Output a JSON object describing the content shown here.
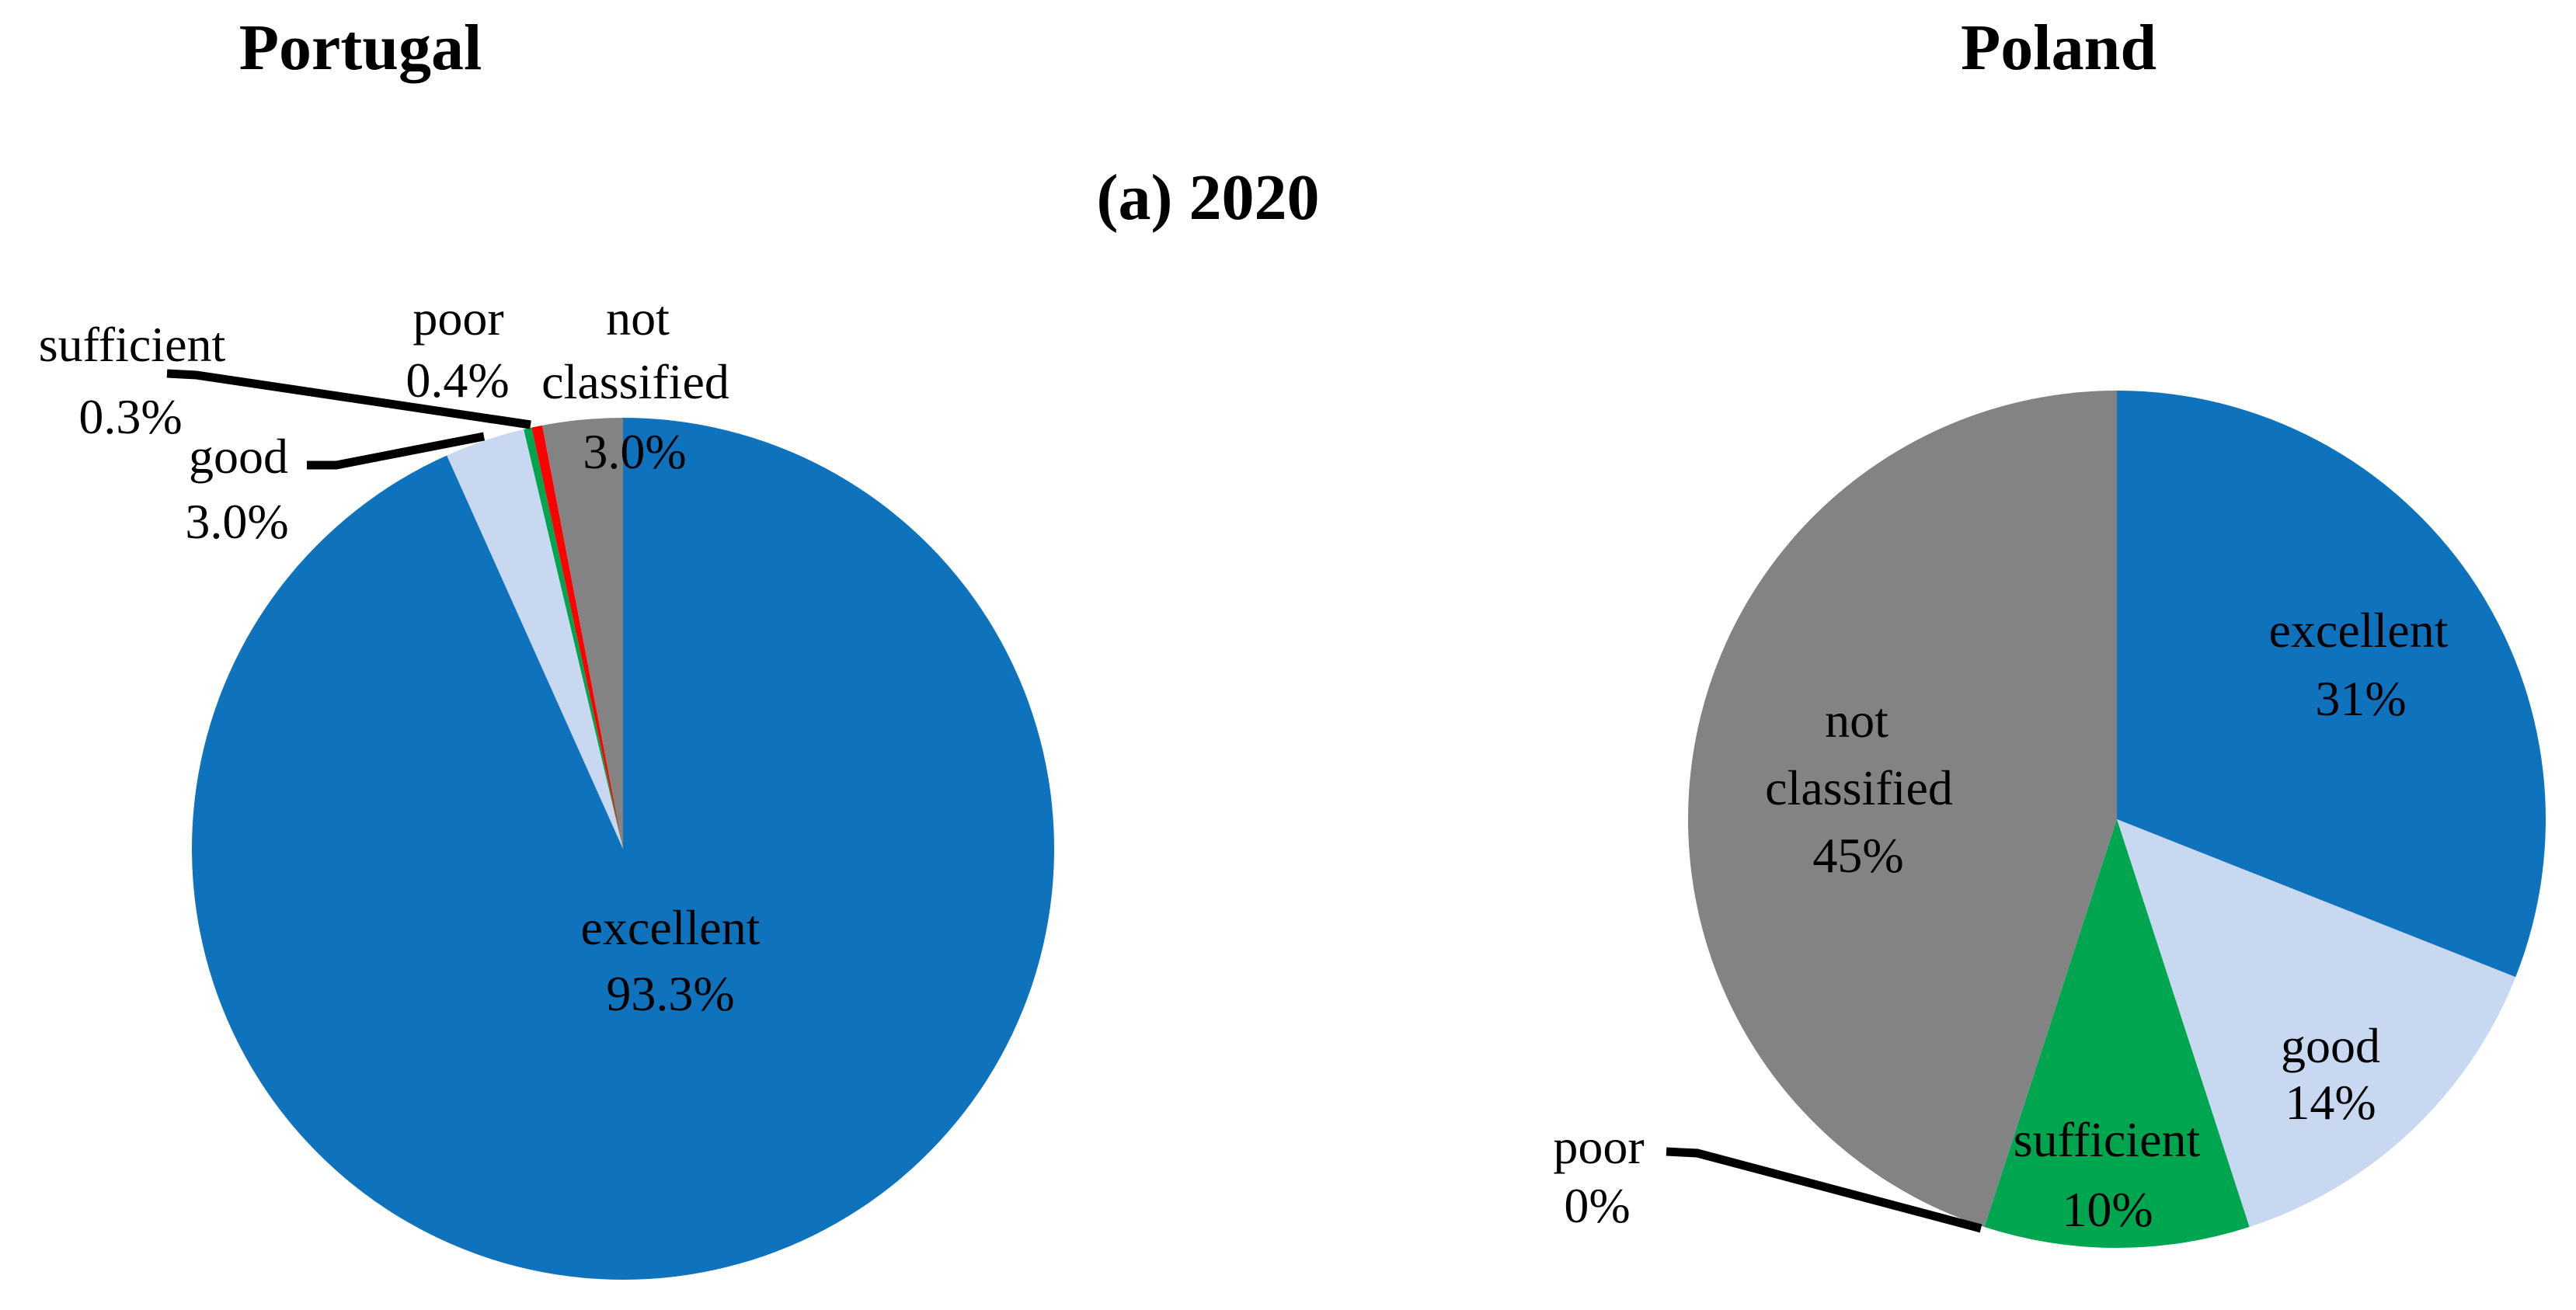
{
  "titles": {
    "left": "Portugal",
    "right": "Poland",
    "caption": "(a) 2020"
  },
  "colors": {
    "excellent": "#0F72BC",
    "good": "#C8D8F0",
    "sufficient": "#00A550",
    "poor": "#FF0000",
    "not_classified": "#838383",
    "leader_line": "#000000",
    "text": "#000000",
    "background": "#FFFFFF"
  },
  "chart_data": [
    {
      "type": "pie",
      "title": "Portugal",
      "categories": [
        "excellent",
        "good",
        "sufficient",
        "poor",
        "not classified"
      ],
      "values": [
        93.3,
        3.0,
        0.3,
        0.4,
        3.0
      ],
      "display_values": [
        "93.3%",
        "3.0%",
        "0.3%",
        "0.4%",
        "3.0%"
      ],
      "slice_colors": [
        "#0F72BC",
        "#C8D8F0",
        "#00A550",
        "#FF0000",
        "#838383"
      ],
      "start_angle_deg": 0,
      "direction": "clockwise",
      "center": [
        802,
        1093
      ],
      "radius": 555,
      "legend": "none",
      "label_style": "category and percent, outside for small slices, inside for excellent"
    },
    {
      "type": "pie",
      "title": "Poland",
      "categories": [
        "excellent",
        "good",
        "sufficient",
        "poor",
        "not classified"
      ],
      "values": [
        31,
        14,
        10,
        0,
        45
      ],
      "display_values": [
        "31%",
        "14%",
        "10%",
        "0%",
        "45%"
      ],
      "slice_colors": [
        "#0F72BC",
        "#C8D8F0",
        "#00A550",
        "#FF0000",
        "#838383"
      ],
      "start_angle_deg": 0,
      "direction": "clockwise",
      "center": [
        2725,
        1055
      ],
      "radius": 552,
      "legend": "none",
      "label_style": "category and percent inside slices, poor labeled outside with leader line"
    }
  ],
  "labels": {
    "portugal": {
      "sufficient": [
        "sufficient",
        "0.3%"
      ],
      "poor": [
        "poor",
        "0.4%"
      ],
      "not_classified": [
        "not",
        "classified",
        "3.0%"
      ],
      "good": [
        "good",
        "3.0%"
      ],
      "excellent": [
        "excellent",
        "93.3%"
      ]
    },
    "poland": {
      "excellent": [
        "excellent",
        "31%"
      ],
      "not_classified": [
        "not",
        "classified",
        "45%"
      ],
      "good": [
        "good",
        "14%"
      ],
      "sufficient": [
        "sufficient",
        "10%"
      ],
      "poor": [
        "poor",
        "0%"
      ]
    }
  }
}
